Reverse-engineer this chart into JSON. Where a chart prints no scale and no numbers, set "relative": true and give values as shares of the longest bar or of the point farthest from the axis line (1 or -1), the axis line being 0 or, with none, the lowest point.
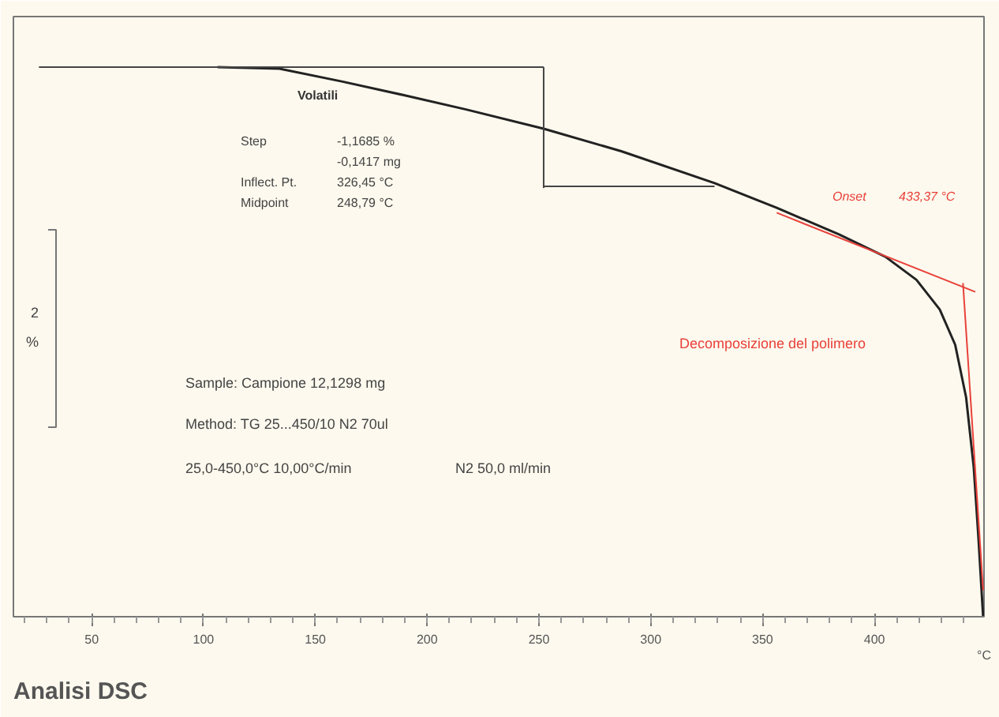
{
  "chart_data": {
    "type": "line",
    "title": "Analisi DSC",
    "xlabel": "°C",
    "relative": true,
    "grid": false,
    "marker": "none",
    "line_style": "solid",
    "xlim": [
      15,
      449
    ],
    "xticks": [
      50,
      100,
      150,
      200,
      250,
      300,
      350,
      400
    ],
    "series": [
      {
        "color": "#222222",
        "x": [
          106.3,
          134,
          161.8,
          189.6,
          217.4,
          252.1,
          286.8,
          328.5,
          356.3,
          384.0,
          404.9,
          418.8,
          429.2,
          436.1,
          441.0,
          444.4,
          446.5,
          448.6
        ],
        "values": [
          1.0,
          0.997,
          0.974,
          0.949,
          0.923,
          0.888,
          0.847,
          0.789,
          0.744,
          0.696,
          0.655,
          0.613,
          0.559,
          0.495,
          0.399,
          0.272,
          0.144,
          0.0
        ]
      },
      {
        "color": "#444444",
        "x": [
          26.4,
          252.1
        ],
        "values": [
          1.0,
          1.0
        ]
      },
      {
        "color": "#444444",
        "x": [
          252.1,
          252.1
        ],
        "values": [
          1.0,
          0.78
        ]
      },
      {
        "color": "#444444",
        "x": [
          252.1,
          328.5
        ],
        "values": [
          0.783,
          0.783
        ]
      },
      {
        "color": "#e8413a",
        "x": [
          356.3,
          445.1
        ],
        "values": [
          0.735,
          0.591
        ]
      },
      {
        "color": "#e8413a",
        "x": [
          439.6,
          448.6
        ],
        "values": [
          0.607,
          0.048
        ]
      }
    ],
    "annotations": [
      "Volatili",
      "Step",
      "-1,1685 %",
      "-0,1417 mg",
      "Inflect. Pt.",
      "326,45 °C",
      "Midpoint",
      "248,79 °C",
      "Onset",
      "433,37 °C",
      "Decomposizione del polimero",
      "Sample: Campione 12,1298 mg",
      "Method: TG 25...450/10 N2 70ul",
      "25,0-450,0°C 10,00°C/min",
      "N2 50,0 ml/min",
      "2",
      "%"
    ]
  }
}
